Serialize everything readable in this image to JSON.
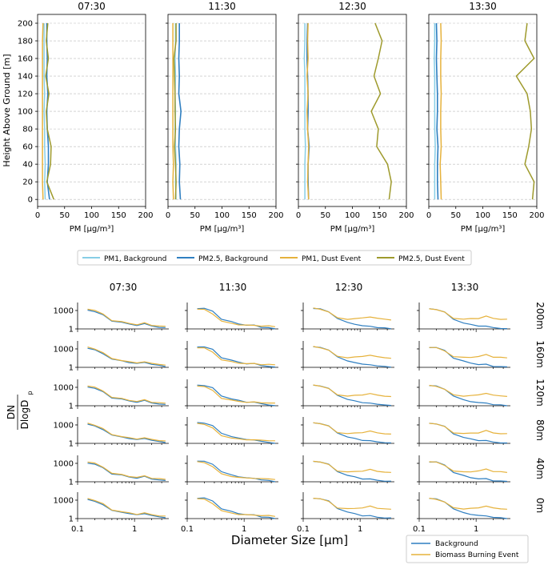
{
  "chart_data": [
    {
      "type": "line",
      "panel": "top-profiles",
      "xlabel": "PM [µg/m³]",
      "ylabel": "Height Above Ground [m]",
      "xlim": [
        0,
        200
      ],
      "ylim": [
        -8,
        210
      ],
      "xticks": [
        0,
        50,
        100,
        150,
        200
      ],
      "yticks": [
        0,
        20,
        40,
        60,
        80,
        100,
        120,
        140,
        160,
        180,
        200
      ],
      "heights": [
        0,
        20,
        40,
        60,
        80,
        100,
        120,
        140,
        160,
        180,
        200
      ],
      "legend": [
        "PM1, Background",
        "PM2.5, Background",
        "PM1, Dust Event",
        "PM2.5, Dust Event"
      ],
      "colors": [
        "#87cee6",
        "#2f7fc1",
        "#e6b23c",
        "#9e9a2c"
      ],
      "subplots": [
        {
          "title": "07:30",
          "series": [
            {
              "name": "PM1, Background",
              "values": [
                14,
                13,
                14,
                13,
                13,
                12,
                13,
                12,
                12,
                12,
                12
              ]
            },
            {
              "name": "PM2.5, Background",
              "values": [
                22,
                18,
                20,
                20,
                18,
                17,
                19,
                17,
                18,
                17,
                17
              ]
            },
            {
              "name": "PM1, Dust Event",
              "values": [
                10,
                9,
                9,
                9,
                9,
                9,
                9,
                9,
                9,
                9,
                10
              ]
            },
            {
              "name": "PM2.5, Dust Event",
              "values": [
                30,
                17,
                24,
                25,
                18,
                16,
                21,
                15,
                20,
                16,
                19
              ]
            }
          ]
        },
        {
          "title": "11:30",
          "series": [
            {
              "name": "PM1, Background",
              "values": [
                15,
                14,
                15,
                14,
                13,
                14,
                13,
                14,
                13,
                14,
                14
              ]
            },
            {
              "name": "PM2.5, Background",
              "values": [
                23,
                21,
                22,
                20,
                21,
                24,
                20,
                21,
                20,
                21,
                21
              ]
            },
            {
              "name": "PM1, Dust Event",
              "values": [
                10,
                9,
                10,
                9,
                9,
                9,
                9,
                9,
                9,
                9,
                9
              ]
            },
            {
              "name": "PM2.5, Dust Event",
              "values": [
                14,
                15,
                14,
                12,
                14,
                13,
                13,
                12,
                11,
                15,
                15
              ]
            }
          ]
        },
        {
          "title": "12:30",
          "series": [
            {
              "name": "PM1, Background",
              "values": [
                12,
                12,
                12,
                13,
                12,
                12,
                12,
                12,
                11,
                12,
                12
              ]
            },
            {
              "name": "PM2.5, Background",
              "values": [
                19,
                18,
                18,
                20,
                17,
                18,
                18,
                17,
                16,
                16,
                17
              ]
            },
            {
              "name": "PM1, Dust Event",
              "values": [
                19,
                17,
                18,
                19,
                17,
                16,
                18,
                16,
                18,
                17,
                18
              ]
            },
            {
              "name": "PM2.5, Dust Event",
              "values": [
                168,
                172,
                165,
                145,
                148,
                135,
                152,
                140,
                148,
                155,
                142
              ]
            }
          ]
        },
        {
          "title": "13:30",
          "series": [
            {
              "name": "PM1, Background",
              "values": [
                11,
                11,
                11,
                12,
                11,
                11,
                11,
                11,
                10,
                11,
                11
              ]
            },
            {
              "name": "PM2.5, Background",
              "values": [
                17,
                16,
                16,
                17,
                15,
                16,
                16,
                15,
                14,
                15,
                14
              ]
            },
            {
              "name": "PM1, Dust Event",
              "values": [
                23,
                22,
                21,
                23,
                22,
                22,
                23,
                22,
                22,
                23,
                22
              ]
            },
            {
              "name": "PM2.5, Dust Event",
              "values": [
                192,
                195,
                178,
                185,
                190,
                188,
                182,
                162,
                195,
                178,
                182
              ]
            }
          ]
        }
      ]
    },
    {
      "type": "line",
      "panel": "size-distribution-grid",
      "xlabel": "Diameter Size [µm]",
      "ylabel_top": "DN",
      "ylabel_bottom": "DlogD",
      "ylabel_sub": "p",
      "xscale": "log",
      "xlim": [
        0.1,
        4.0
      ],
      "yscale": "log",
      "ylim": [
        1,
        20000
      ],
      "xticks": [
        0.1,
        1
      ],
      "xtick_labels": [
        "0.1",
        "1"
      ],
      "yticks": [
        1,
        1000
      ],
      "ytick_labels": [
        "1",
        "1000"
      ],
      "columns": [
        "07:30",
        "11:30",
        "12:30",
        "13:30"
      ],
      "rows": [
        "200m",
        "160m",
        "120m",
        "80m",
        "40m",
        "0m"
      ],
      "legend": [
        "Background",
        "Biomass Burning Event"
      ],
      "colors": [
        "#2f7fc1",
        "#e6b23c"
      ],
      "diameters": [
        0.15,
        0.2,
        0.28,
        0.4,
        0.6,
        0.8,
        1.1,
        1.5,
        2.0,
        2.7,
        3.5
      ],
      "profiles": {
        "07:30": {
          "Background": [
            1200,
            700,
            180,
            20,
            12,
            6,
            4,
            7,
            3,
            2,
            1.5
          ],
          "Biomass Burning Event": [
            1800,
            1000,
            250,
            25,
            14,
            8,
            5,
            9,
            4,
            3,
            2.5
          ]
        },
        "11:30": {
          "Background": [
            2200,
            2100,
            800,
            40,
            14,
            7,
            4,
            4,
            2,
            1.5,
            1
          ],
          "Biomass Burning Event": [
            1700,
            1400,
            300,
            18,
            8,
            5,
            4,
            4,
            3,
            3,
            2.5
          ]
        },
        "12:30": {
          "Background": [
            2000,
            1800,
            700,
            45,
            12,
            6,
            3,
            3,
            1.6,
            1.4,
            1.2
          ],
          "Biomass Burning Event": [
            2300,
            1700,
            600,
            60,
            40,
            45,
            60,
            100,
            50,
            40,
            30
          ]
        },
        "13:30": {
          "Background": [
            1800,
            1600,
            550,
            35,
            10,
            5,
            3,
            3,
            1.5,
            1.3,
            1.1
          ],
          "Biomass Burning Event": [
            1900,
            1500,
            500,
            55,
            40,
            45,
            55,
            120,
            50,
            40,
            35
          ]
        }
      }
    }
  ]
}
